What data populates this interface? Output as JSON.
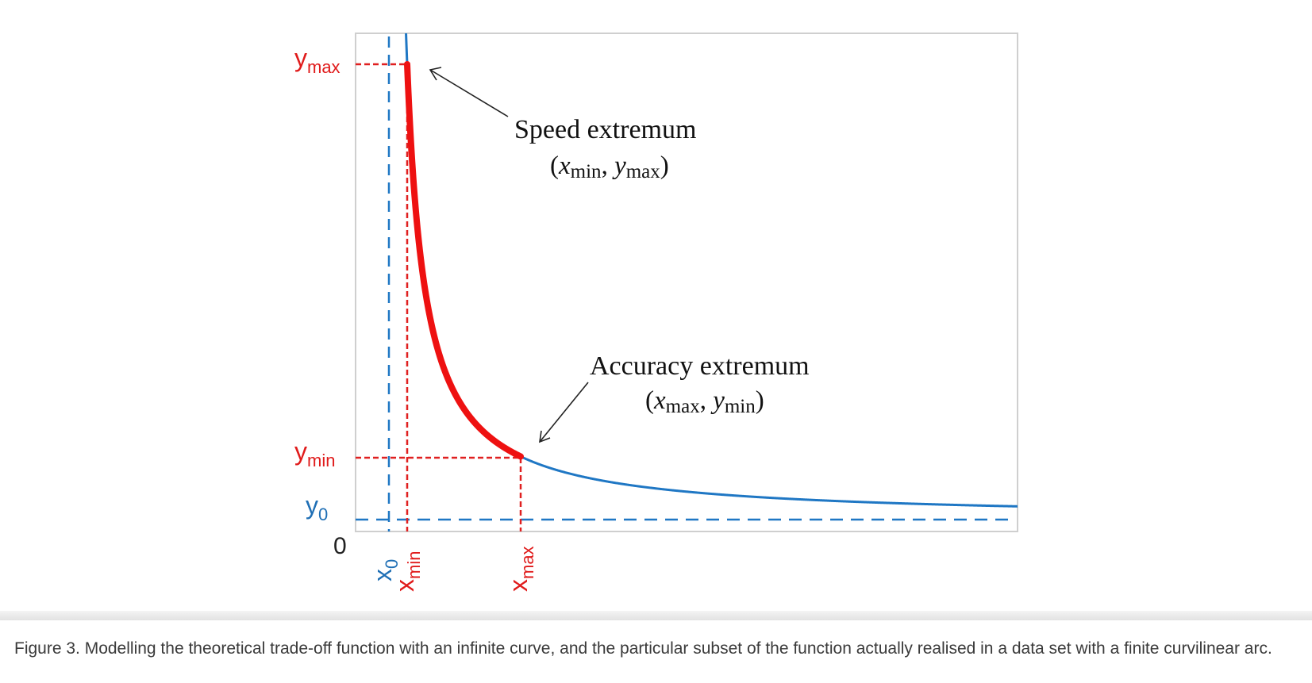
{
  "colors": {
    "curve": "#1f77c4",
    "arc": "#ee1111",
    "red_guide": "#e02020",
    "blue_guide": "#1f77c4",
    "frame": "#cfcfcf",
    "label_blue": "#1f6fb5",
    "label_red": "#e01b1b"
  },
  "axis": {
    "origin_label": "0"
  },
  "y_labels": {
    "ymax": {
      "base": "y",
      "sub": "max"
    },
    "ymin": {
      "base": "y",
      "sub": "min"
    },
    "y0": {
      "base": "y",
      "sub": "0"
    }
  },
  "x_labels": {
    "x0": {
      "base": "x",
      "sub": "0"
    },
    "xmin": {
      "base": "x",
      "sub": "min"
    },
    "xmax": {
      "base": "x",
      "sub": "max"
    }
  },
  "annotations": {
    "speed": {
      "title": "Speed extremum",
      "open": "(",
      "x": "x",
      "x_sub": "min",
      "sep": ", ",
      "y": "y",
      "y_sub": "max",
      "close": ")"
    },
    "accuracy": {
      "title": "Accuracy extremum",
      "open": "(",
      "x": "x",
      "x_sub": "max",
      "sep": ", ",
      "y": "y",
      "y_sub": "min",
      "close": ")"
    }
  },
  "caption": "Figure 3. Modelling the theoretical trade-off function with an infinite curve, and the particular subset of the function actually realised in a data set with a finite curvilinear arc."
}
